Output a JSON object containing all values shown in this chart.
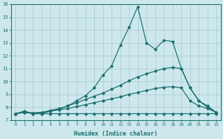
{
  "xlabel": "Humidex (Indice chaleur)",
  "xlim_min": -0.5,
  "xlim_max": 23.5,
  "ylim_min": 7,
  "ylim_max": 16,
  "xticks": [
    0,
    1,
    2,
    3,
    4,
    5,
    6,
    7,
    8,
    9,
    10,
    11,
    12,
    13,
    14,
    15,
    16,
    17,
    18,
    19,
    20,
    21,
    22,
    23
  ],
  "yticks": [
    7,
    8,
    9,
    10,
    11,
    12,
    13,
    14,
    15,
    16
  ],
  "bg_color": "#cde8ec",
  "grid_color": "#aacdd4",
  "line_color": "#1a7070",
  "line1_x": [
    0,
    1,
    2,
    3,
    4,
    5,
    6,
    7,
    8,
    9,
    10,
    11,
    12,
    13,
    14,
    15,
    16,
    17,
    18,
    19,
    20,
    21,
    22,
    23
  ],
  "line1_y": [
    7.5,
    7.6,
    7.5,
    7.5,
    7.5,
    7.5,
    7.5,
    7.5,
    7.5,
    7.5,
    7.5,
    7.5,
    7.5,
    7.5,
    7.5,
    7.5,
    7.5,
    7.5,
    7.5,
    7.5,
    7.5,
    7.5,
    7.5,
    7.5
  ],
  "line2_x": [
    0,
    1,
    2,
    3,
    4,
    5,
    6,
    7,
    8,
    9,
    10,
    11,
    12,
    13,
    14,
    15,
    16,
    17,
    18,
    19,
    20,
    21,
    22,
    23
  ],
  "line2_y": [
    7.5,
    7.6,
    7.55,
    7.6,
    7.7,
    7.8,
    7.9,
    8.05,
    8.2,
    8.35,
    8.5,
    8.65,
    8.8,
    9.0,
    9.15,
    9.3,
    9.45,
    9.55,
    9.6,
    9.5,
    8.5,
    8.1,
    7.9,
    7.6
  ],
  "line3_x": [
    0,
    1,
    2,
    3,
    4,
    5,
    6,
    7,
    8,
    9,
    10,
    11,
    12,
    13,
    14,
    15,
    16,
    17,
    18,
    19,
    20,
    21,
    22,
    23
  ],
  "line3_y": [
    7.5,
    7.65,
    7.55,
    7.6,
    7.75,
    7.9,
    8.1,
    8.35,
    8.6,
    8.85,
    9.1,
    9.4,
    9.7,
    10.05,
    10.35,
    10.6,
    10.8,
    11.0,
    11.1,
    11.0,
    9.5,
    8.5,
    8.1,
    7.6
  ],
  "line4_x": [
    0,
    1,
    2,
    3,
    4,
    5,
    6,
    7,
    8,
    9,
    10,
    11,
    12,
    13,
    14,
    15,
    16,
    17,
    18,
    19,
    20,
    21,
    22,
    23
  ],
  "line4_y": [
    7.5,
    7.7,
    7.5,
    7.5,
    7.7,
    7.85,
    8.1,
    8.5,
    8.9,
    9.5,
    10.5,
    11.2,
    12.8,
    14.2,
    15.8,
    13.0,
    12.5,
    13.2,
    13.1,
    11.0,
    9.5,
    8.5,
    8.0,
    7.6
  ]
}
